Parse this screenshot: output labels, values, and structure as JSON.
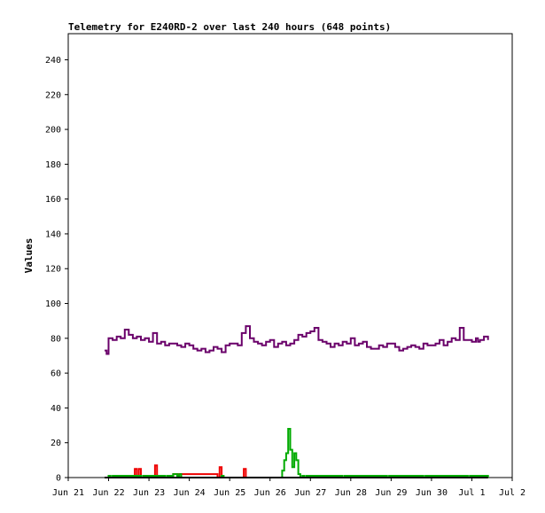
{
  "chart_data": {
    "type": "line",
    "title": "Telemetry for E240RD-2 over last 240 hours (648 points)",
    "xlabel": "",
    "ylabel": "Values",
    "x_ticks": [
      "Jun 21",
      "Jun 22",
      "Jun 23",
      "Jun 24",
      "Jun 25",
      "Jun 26",
      "Jun 27",
      "Jun 28",
      "Jun 29",
      "Jun 30",
      "Jul 1",
      "Jul 2"
    ],
    "y_ticks": [
      0,
      20,
      40,
      60,
      80,
      100,
      120,
      140,
      160,
      180,
      200,
      220,
      240
    ],
    "xlim_days": [
      0,
      11
    ],
    "ylim": [
      0,
      255
    ],
    "grid": false,
    "series": [
      {
        "color": "#6a006a",
        "x_days": [
          0.9,
          0.95,
          1.0,
          1.1,
          1.2,
          1.3,
          1.4,
          1.5,
          1.6,
          1.7,
          1.8,
          1.9,
          2.0,
          2.1,
          2.2,
          2.3,
          2.4,
          2.5,
          2.6,
          2.7,
          2.8,
          2.9,
          3.0,
          3.1,
          3.2,
          3.3,
          3.4,
          3.5,
          3.6,
          3.7,
          3.8,
          3.9,
          4.0,
          4.1,
          4.2,
          4.3,
          4.4,
          4.5,
          4.6,
          4.7,
          4.8,
          4.9,
          5.0,
          5.1,
          5.2,
          5.3,
          5.4,
          5.5,
          5.6,
          5.7,
          5.8,
          5.9,
          6.0,
          6.1,
          6.2,
          6.3,
          6.4,
          6.5,
          6.6,
          6.7,
          6.8,
          6.9,
          7.0,
          7.1,
          7.2,
          7.3,
          7.4,
          7.5,
          7.6,
          7.7,
          7.8,
          7.9,
          8.0,
          8.1,
          8.2,
          8.3,
          8.4,
          8.5,
          8.6,
          8.7,
          8.8,
          8.9,
          9.0,
          9.1,
          9.2,
          9.3,
          9.4,
          9.5,
          9.6,
          9.7,
          9.8,
          9.9,
          10.0,
          10.1,
          10.15,
          10.2,
          10.3,
          10.4
        ],
        "values": [
          73,
          71,
          80,
          79,
          81,
          80,
          85,
          82,
          80,
          81,
          79,
          80,
          78,
          83,
          77,
          78,
          76,
          77,
          77,
          76,
          75,
          77,
          76,
          74,
          73,
          74,
          72,
          73,
          75,
          74,
          72,
          76,
          77,
          77,
          76,
          83,
          87,
          80,
          78,
          77,
          76,
          78,
          79,
          75,
          77,
          78,
          76,
          77,
          79,
          82,
          81,
          83,
          84,
          86,
          79,
          78,
          77,
          75,
          77,
          76,
          78,
          77,
          80,
          76,
          77,
          78,
          75,
          74,
          74,
          76,
          75,
          77,
          77,
          75,
          73,
          74,
          75,
          76,
          75,
          74,
          77,
          76,
          76,
          77,
          79,
          76,
          78,
          80,
          79,
          86,
          79,
          79,
          78,
          80,
          78,
          79,
          81,
          79
        ]
      },
      {
        "color": "#ee0000",
        "x_days": [
          0.9,
          1.6,
          1.65,
          1.7,
          1.75,
          1.8,
          2.1,
          2.15,
          2.2,
          2.55,
          2.6,
          3.7,
          3.75,
          3.8,
          4.3,
          4.35,
          4.4,
          10.4
        ],
        "values": [
          0,
          0,
          5,
          0,
          5,
          0,
          0,
          7,
          0,
          0,
          2,
          0,
          6,
          0,
          0,
          5,
          0,
          0
        ]
      },
      {
        "color": "#00aa00",
        "x_days": [
          0.9,
          1.0,
          1.05,
          1.1,
          1.8,
          1.85,
          2.4,
          2.45,
          2.6,
          2.7,
          2.75,
          2.8,
          3.8,
          3.85,
          5.2,
          5.3,
          5.35,
          5.4,
          5.45,
          5.5,
          5.55,
          5.6,
          5.65,
          5.7,
          5.75,
          5.8,
          5.85,
          5.9,
          6.8,
          6.85,
          7.9,
          7.95,
          8.8,
          8.85,
          9.9,
          9.95,
          10.4
        ],
        "values": [
          0,
          1,
          0,
          1,
          0,
          1,
          0,
          1,
          2,
          1,
          2,
          0,
          1,
          0,
          0,
          4,
          10,
          14,
          28,
          16,
          6,
          14,
          10,
          2,
          0,
          1,
          0,
          1,
          0,
          1,
          0,
          1,
          0,
          1,
          0,
          1,
          0
        ]
      },
      {
        "color": "#000000",
        "x_days": [
          0.9,
          10.4
        ],
        "values": [
          0,
          0
        ]
      }
    ]
  }
}
